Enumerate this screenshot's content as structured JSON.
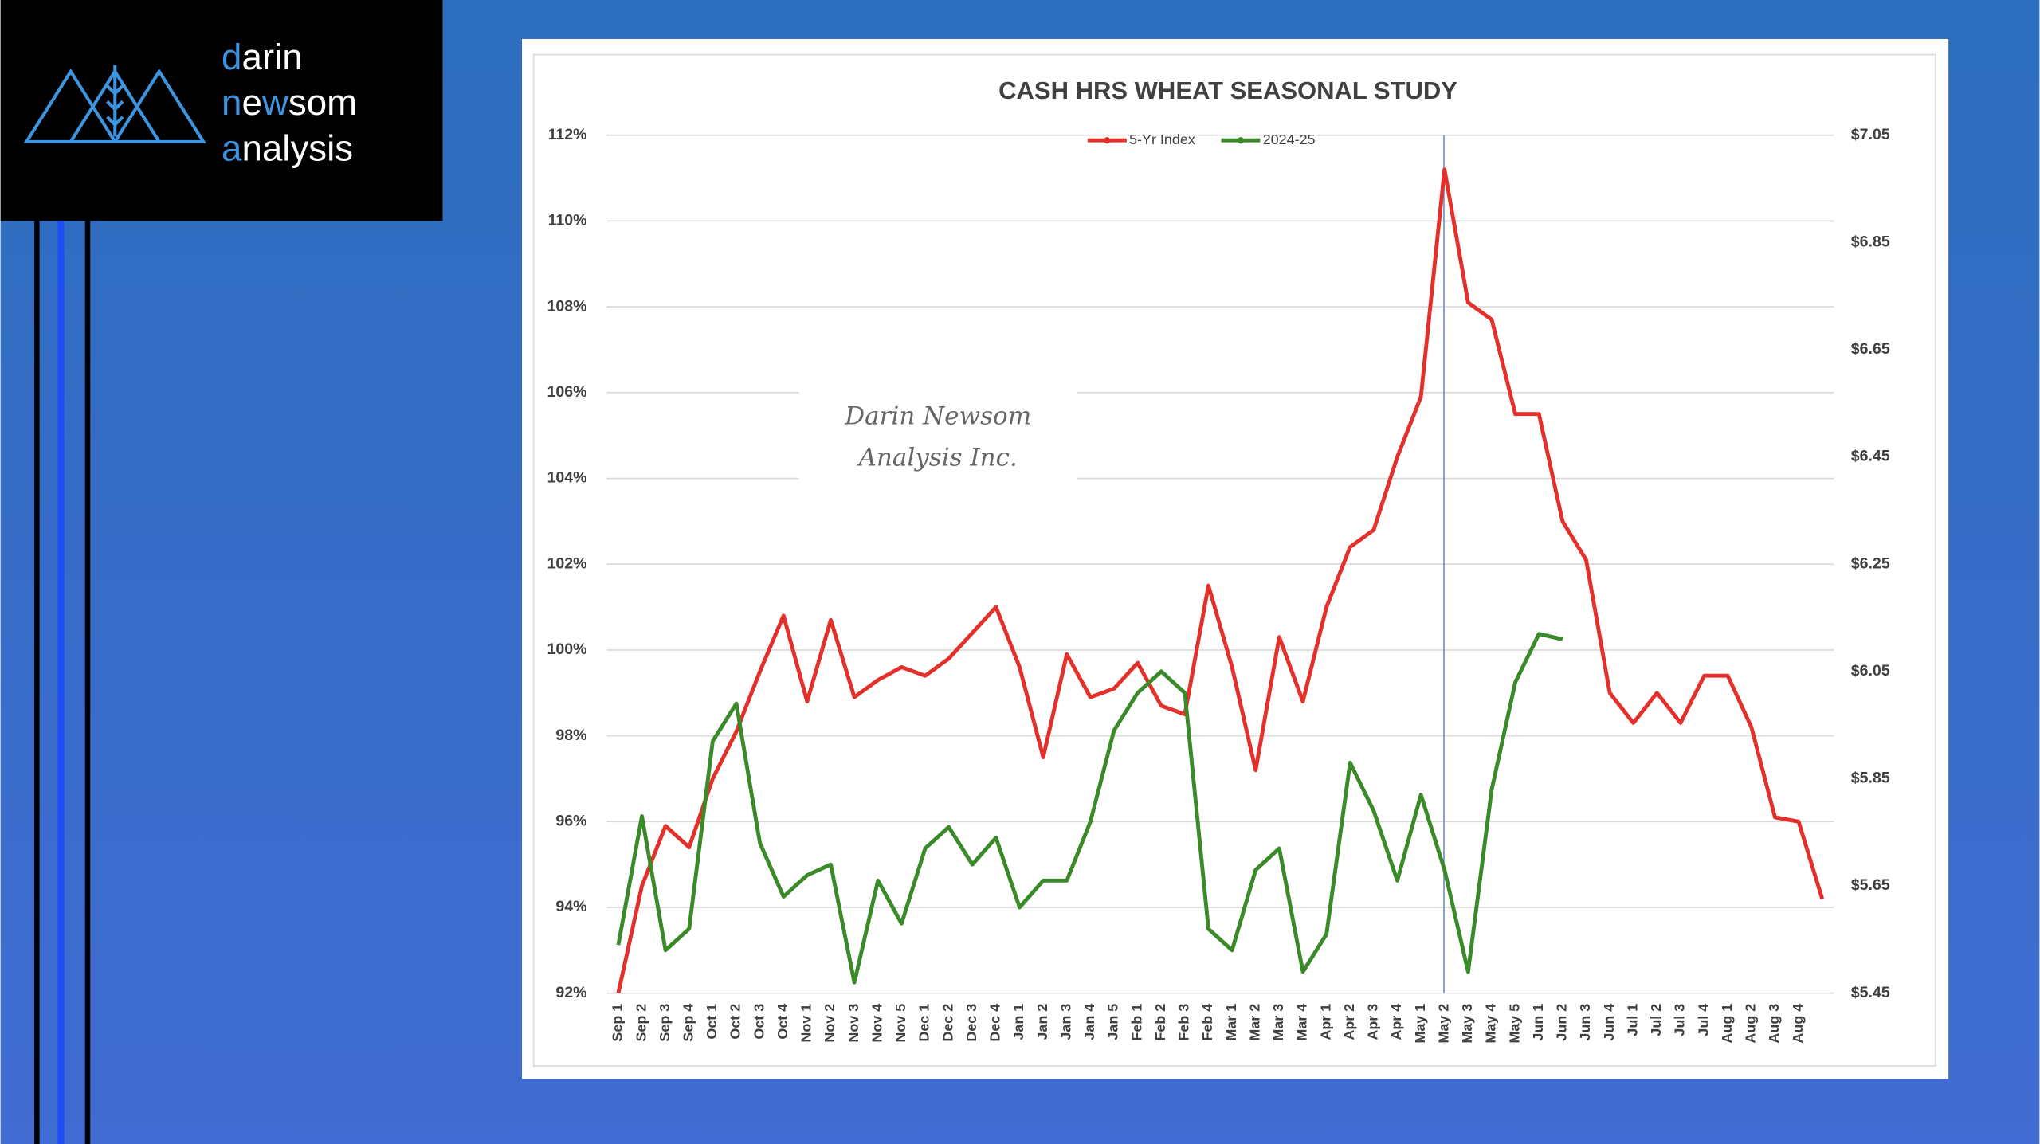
{
  "logo": {
    "lines": [
      [
        "d",
        "arin"
      ],
      [
        "n",
        "e",
        "w",
        "som"
      ],
      [
        "a",
        "nalysis"
      ]
    ]
  },
  "watermark": [
    "Darin Newsom",
    "Analysis Inc."
  ],
  "chart_data": {
    "type": "line",
    "title": "CASH HRS WHEAT SEASONAL STUDY",
    "categories": [
      "Sep 1",
      "Sep 2",
      "Sep 3",
      "Sep 4",
      "Oct 1",
      "Oct 2",
      "Oct 3",
      "Oct 4",
      "Nov 1",
      "Nov 2",
      "Nov 3",
      "Nov 4",
      "Nov 5",
      "Dec 1",
      "Dec 2",
      "Dec 3",
      "Dec 4",
      "Jan 1",
      "Jan 2",
      "Jan 3",
      "Jan 4",
      "Jan 5",
      "Feb 1",
      "Feb 2",
      "Feb 3",
      "Feb 4",
      "Mar 1",
      "Mar 2",
      "Mar 3",
      "Mar 4",
      "Apr 1",
      "Apr 2",
      "Apr 3",
      "Apr 4",
      "May 1",
      "May 2",
      "May 3",
      "May 4",
      "May 5",
      "Jun 1",
      "Jun 2",
      "Jun 3",
      "Jun 4",
      "Jul 1",
      "Jul 2",
      "Jul 3",
      "Jul 4",
      "Aug 1",
      "Aug 2",
      "Aug 3",
      "Aug 4",
      null
    ],
    "series": [
      {
        "name": "5-Yr Index",
        "color": "#e3302a",
        "values": [
          92.0,
          94.5,
          95.9,
          95.4,
          97.0,
          98.1,
          99.5,
          100.8,
          98.8,
          100.7,
          98.9,
          99.3,
          99.6,
          99.4,
          99.8,
          100.4,
          101.0,
          99.6,
          97.5,
          99.9,
          98.9,
          99.1,
          99.7,
          98.7,
          98.5,
          101.5,
          99.6,
          97.2,
          100.3,
          98.8,
          101.0,
          102.4,
          102.8,
          104.5,
          105.9,
          111.2,
          108.1,
          107.7,
          105.5,
          105.5,
          103.0,
          102.1,
          99.0,
          98.3,
          99.0,
          98.3,
          99.4,
          99.4,
          98.2,
          96.1,
          96.0,
          94.2
        ]
      },
      {
        "name": "2024-25",
        "color": "#3b8a2a",
        "axis": "y2",
        "values": [
          5.54,
          5.78,
          5.53,
          5.57,
          5.92,
          5.99,
          5.73,
          5.63,
          5.67,
          5.69,
          5.47,
          5.66,
          5.58,
          5.72,
          5.76,
          5.69,
          5.74,
          5.61,
          5.66,
          5.66,
          5.77,
          5.94,
          6.01,
          6.05,
          6.01,
          5.57,
          5.53,
          5.68,
          5.72,
          5.49,
          5.56,
          5.88,
          5.79,
          5.66,
          5.82,
          5.68,
          5.49,
          5.83,
          6.03,
          6.12,
          6.11,
          null,
          null,
          null,
          null,
          null,
          null,
          null,
          null,
          null,
          null,
          null
        ]
      }
    ],
    "ylim": [
      92,
      112
    ],
    "yticks": [
      {
        "value": 92,
        "label": "92%"
      },
      {
        "value": 94,
        "label": "94%"
      },
      {
        "value": 96,
        "label": "96%"
      },
      {
        "value": 98,
        "label": "98%"
      },
      {
        "value": 100,
        "label": "100%"
      },
      {
        "value": 102,
        "label": "102%"
      },
      {
        "value": 104,
        "label": "104%"
      },
      {
        "value": 106,
        "label": "106%"
      },
      {
        "value": 108,
        "label": "108%"
      },
      {
        "value": 110,
        "label": "110%"
      },
      {
        "value": 112,
        "label": "112%"
      }
    ],
    "y2lim": [
      5.45,
      7.05
    ],
    "y2ticks": [
      {
        "value": 5.45,
        "label": "$5.45"
      },
      {
        "value": 5.65,
        "label": "$5.65"
      },
      {
        "value": 5.85,
        "label": "$5.85"
      },
      {
        "value": 6.05,
        "label": "$6.05"
      },
      {
        "value": 6.25,
        "label": "$6.25"
      },
      {
        "value": 6.45,
        "label": "$6.45"
      },
      {
        "value": 6.65,
        "label": "$6.65"
      },
      {
        "value": 6.85,
        "label": "$6.85"
      },
      {
        "value": 7.05,
        "label": "$7.05"
      }
    ],
    "grid": true,
    "legend": "top"
  }
}
